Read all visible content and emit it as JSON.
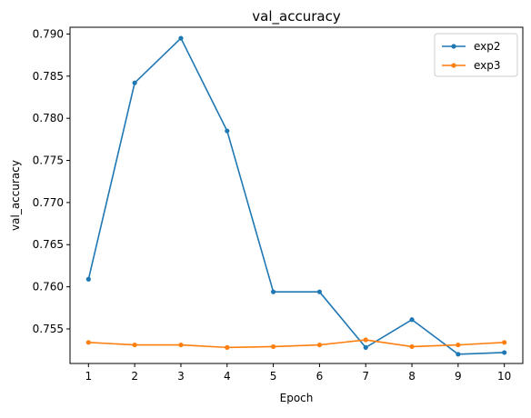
{
  "chart_data": {
    "type": "line",
    "title": "val_accuracy",
    "xlabel": "Epoch",
    "ylabel": "val_accuracy",
    "x": [
      1,
      2,
      3,
      4,
      5,
      6,
      7,
      8,
      9,
      10
    ],
    "x_ticks": [
      "1",
      "2",
      "3",
      "4",
      "5",
      "6",
      "7",
      "8",
      "9",
      "10"
    ],
    "xlim": [
      0.6,
      10.4
    ],
    "ylim": [
      0.7509,
      0.7908
    ],
    "y_ticks": [
      "0.755",
      "0.760",
      "0.765",
      "0.770",
      "0.775",
      "0.780",
      "0.785",
      "0.790"
    ],
    "grid": false,
    "legend_position": "top-right",
    "series": [
      {
        "name": "exp2",
        "color": "#1f77b4",
        "marker": "circle",
        "values": [
          0.7609,
          0.7842,
          0.7895,
          0.7785,
          0.7594,
          0.7594,
          0.7528,
          0.7561,
          0.752,
          0.7522
        ]
      },
      {
        "name": "exp3",
        "color": "#ff7f0e",
        "marker": "circle",
        "values": [
          0.7534,
          0.7531,
          0.7531,
          0.7528,
          0.7529,
          0.7531,
          0.7537,
          0.7529,
          0.7531,
          0.7534
        ]
      }
    ]
  }
}
